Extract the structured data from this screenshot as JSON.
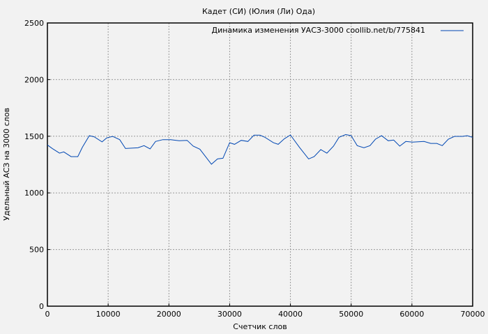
{
  "chart_data": {
    "type": "line",
    "title": "Кадет (СИ) (Юлия (Ли) Ода)",
    "xlabel": "Счетчик слов",
    "ylabel": "Удельный АСЗ на 3000 слов",
    "xlim": [
      0,
      70000
    ],
    "ylim": [
      0,
      2500
    ],
    "xticks": [
      0,
      10000,
      20000,
      30000,
      40000,
      50000,
      60000,
      70000
    ],
    "yticks": [
      0,
      500,
      1000,
      1500,
      2000,
      2500
    ],
    "grid": true,
    "legend_position": "top-right",
    "colors": {
      "line": "#0047b3",
      "grid": "#999999",
      "background": "#f2f2f2"
    },
    "series": [
      {
        "name": "Динамика изменения УАСЗ-3000 coollib.net/b/775841",
        "x": [
          0,
          800,
          2000,
          2700,
          3900,
          5000,
          5750,
          6900,
          7700,
          9000,
          9750,
          10750,
          11900,
          12850,
          14900,
          15900,
          16900,
          17800,
          19000,
          20300,
          21700,
          23000,
          24000,
          25100,
          27000,
          28000,
          28900,
          30000,
          30800,
          31900,
          33000,
          34000,
          35000,
          35800,
          37200,
          38000,
          39000,
          40000,
          41500,
          43000,
          43900,
          45000,
          46000,
          47100,
          48000,
          49100,
          50000,
          51000,
          52100,
          53100,
          54000,
          55000,
          56100,
          57000,
          58000,
          59000,
          60100,
          62000,
          63100,
          64100,
          65000,
          66000,
          67000,
          68300,
          69100,
          70000
        ],
        "y": [
          1423,
          1392,
          1351,
          1362,
          1320,
          1320,
          1402,
          1505,
          1495,
          1450,
          1485,
          1499,
          1470,
          1392,
          1398,
          1417,
          1388,
          1454,
          1470,
          1470,
          1460,
          1464,
          1413,
          1386,
          1253,
          1300,
          1306,
          1443,
          1429,
          1464,
          1454,
          1509,
          1509,
          1491,
          1443,
          1429,
          1478,
          1511,
          1402,
          1300,
          1320,
          1382,
          1351,
          1413,
          1491,
          1515,
          1505,
          1417,
          1398,
          1417,
          1474,
          1505,
          1460,
          1466,
          1413,
          1454,
          1448,
          1454,
          1437,
          1437,
          1417,
          1474,
          1499,
          1499,
          1505,
          1490
        ]
      }
    ]
  }
}
